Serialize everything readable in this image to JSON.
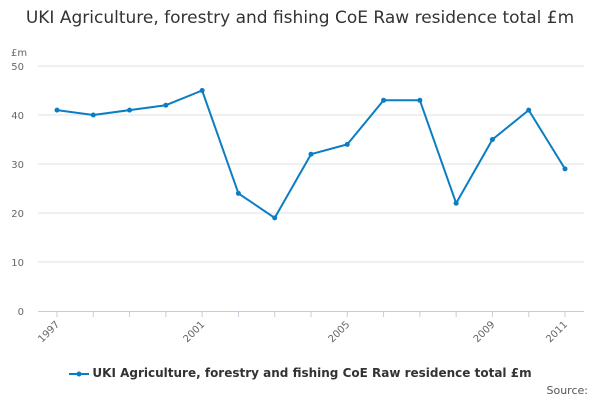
{
  "chart_data": {
    "type": "line",
    "title": "UKI Agriculture, forestry and fishing CoE Raw residence total £m",
    "ylabel": "£m",
    "xlabel": "",
    "x": [
      1997,
      1998,
      1999,
      2000,
      2001,
      2002,
      2003,
      2004,
      2005,
      2006,
      2007,
      2008,
      2009,
      2010,
      2011
    ],
    "x_tick_labels": [
      "1997",
      "2001",
      "2005",
      "2009",
      "2011"
    ],
    "y_ticks": [
      0,
      10,
      20,
      30,
      40,
      50
    ],
    "ylim": [
      0,
      50
    ],
    "grid": true,
    "legend_position": "bottom",
    "series": [
      {
        "name": "UKI Agriculture, forestry and fishing CoE Raw residence total £m",
        "color": "#0b7dc3",
        "values": [
          41,
          40,
          41,
          42,
          45,
          24,
          19,
          32,
          34,
          43,
          43,
          22,
          35,
          41,
          29
        ]
      }
    ]
  },
  "source_label": "Source:"
}
